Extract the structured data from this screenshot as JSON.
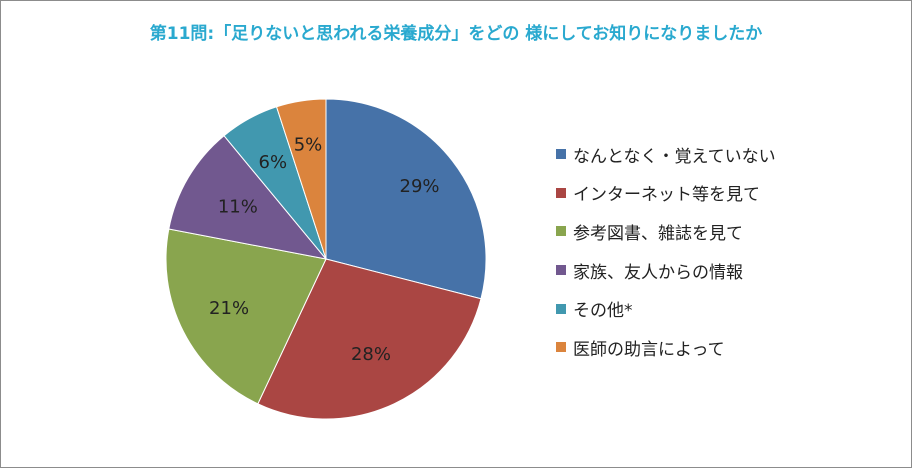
{
  "title": "第11問:「足りないと思われる栄養成分」をどの 様にしてお知りになりましたか",
  "colors": {
    "title": "#2aa9cf",
    "label": "#222222",
    "slice_stroke": "#ffffff"
  },
  "chart_data": {
    "type": "pie",
    "title": "第11問:「足りないと思われる栄養成分」をどの 様にしてお知りになりましたか",
    "legend_position": "right",
    "start": "top (12 o'clock), clockwise",
    "slices": [
      {
        "label": "なんとなく・覚えていない",
        "value": 29,
        "display": "29%",
        "color": "#4672a8"
      },
      {
        "label": "インターネット等を見て",
        "value": 28,
        "display": "28%",
        "color": "#aa4643"
      },
      {
        "label": "参考図書、雑誌を見て",
        "value": 21,
        "display": "21%",
        "color": "#89a54e"
      },
      {
        "label": "家族、友人からの情報",
        "value": 11,
        "display": "11%",
        "color": "#71588f"
      },
      {
        "label": "その他*",
        "value": 6,
        "display": "6%",
        "color": "#4198af"
      },
      {
        "label": "医師の助言によって",
        "value": 5,
        "display": "5%",
        "color": "#db843d"
      }
    ]
  }
}
